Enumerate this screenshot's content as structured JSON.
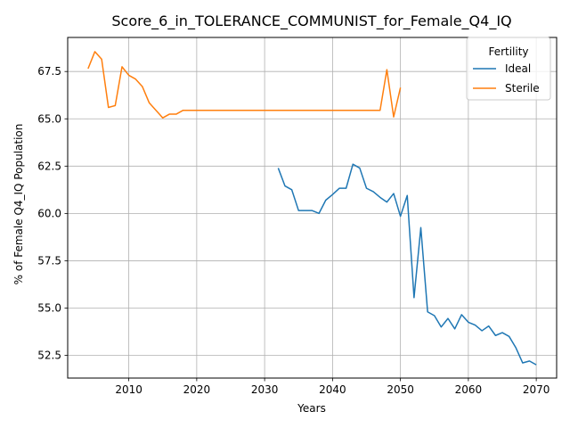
{
  "chart_data": {
    "type": "line",
    "title": "Score_6_in_TOLERANCE_COMMUNIST_for_Female_Q4_IQ",
    "xlabel": "Years",
    "ylabel": "% of Female Q4_IQ Population",
    "xlim": [
      2001,
      2073
    ],
    "ylim": [
      51.3,
      69.3
    ],
    "xticks": [
      2010,
      2020,
      2030,
      2040,
      2050,
      2060,
      2070
    ],
    "yticks": [
      52.5,
      55.0,
      57.5,
      60.0,
      62.5,
      65.0,
      67.5
    ],
    "grid": true,
    "legend": {
      "title": "Fertility",
      "placement": "top-right"
    },
    "series": [
      {
        "name": "Ideal",
        "color": "#1f77b4",
        "x": [
          2032,
          2033,
          2034,
          2035,
          2036,
          2037,
          2038,
          2039,
          2040,
          2041,
          2042,
          2043,
          2044,
          2045,
          2046,
          2047,
          2048,
          2049,
          2050,
          2051,
          2052,
          2053,
          2054,
          2055,
          2056,
          2057,
          2058,
          2059,
          2060,
          2061,
          2062,
          2063,
          2064,
          2065,
          2066,
          2067,
          2068,
          2069,
          2070
        ],
        "y": [
          62.4,
          61.45,
          61.25,
          60.15,
          60.15,
          60.15,
          60.0,
          60.7,
          61.0,
          61.33,
          61.33,
          62.6,
          62.4,
          61.33,
          61.15,
          60.85,
          60.6,
          61.05,
          59.85,
          60.95,
          55.55,
          59.25,
          54.8,
          54.6,
          54.0,
          54.45,
          53.9,
          54.65,
          54.25,
          54.1,
          53.8,
          54.05,
          53.55,
          53.7,
          53.5,
          52.9,
          52.1,
          52.2,
          52.0
        ]
      },
      {
        "name": "Sterile",
        "color": "#ff7f0e",
        "x": [
          2004,
          2005,
          2006,
          2007,
          2008,
          2009,
          2010,
          2011,
          2012,
          2013,
          2014,
          2015,
          2016,
          2017,
          2018,
          2019,
          2020,
          2021,
          2022,
          2023,
          2024,
          2025,
          2026,
          2027,
          2028,
          2029,
          2030,
          2031,
          2032,
          2033,
          2034,
          2035,
          2036,
          2037,
          2038,
          2039,
          2040,
          2041,
          2042,
          2043,
          2044,
          2045,
          2046,
          2047,
          2048,
          2049,
          2050
        ],
        "y": [
          67.65,
          68.55,
          68.15,
          65.6,
          65.7,
          67.75,
          67.3,
          67.1,
          66.7,
          65.85,
          65.45,
          65.05,
          65.25,
          65.25,
          65.45,
          65.45,
          65.45,
          65.45,
          65.45,
          65.45,
          65.45,
          65.45,
          65.45,
          65.45,
          65.45,
          65.45,
          65.45,
          65.45,
          65.45,
          65.45,
          65.45,
          65.45,
          65.45,
          65.45,
          65.45,
          65.45,
          65.45,
          65.45,
          65.45,
          65.45,
          65.45,
          65.45,
          65.45,
          65.45,
          67.6,
          65.1,
          66.65
        ]
      }
    ]
  }
}
